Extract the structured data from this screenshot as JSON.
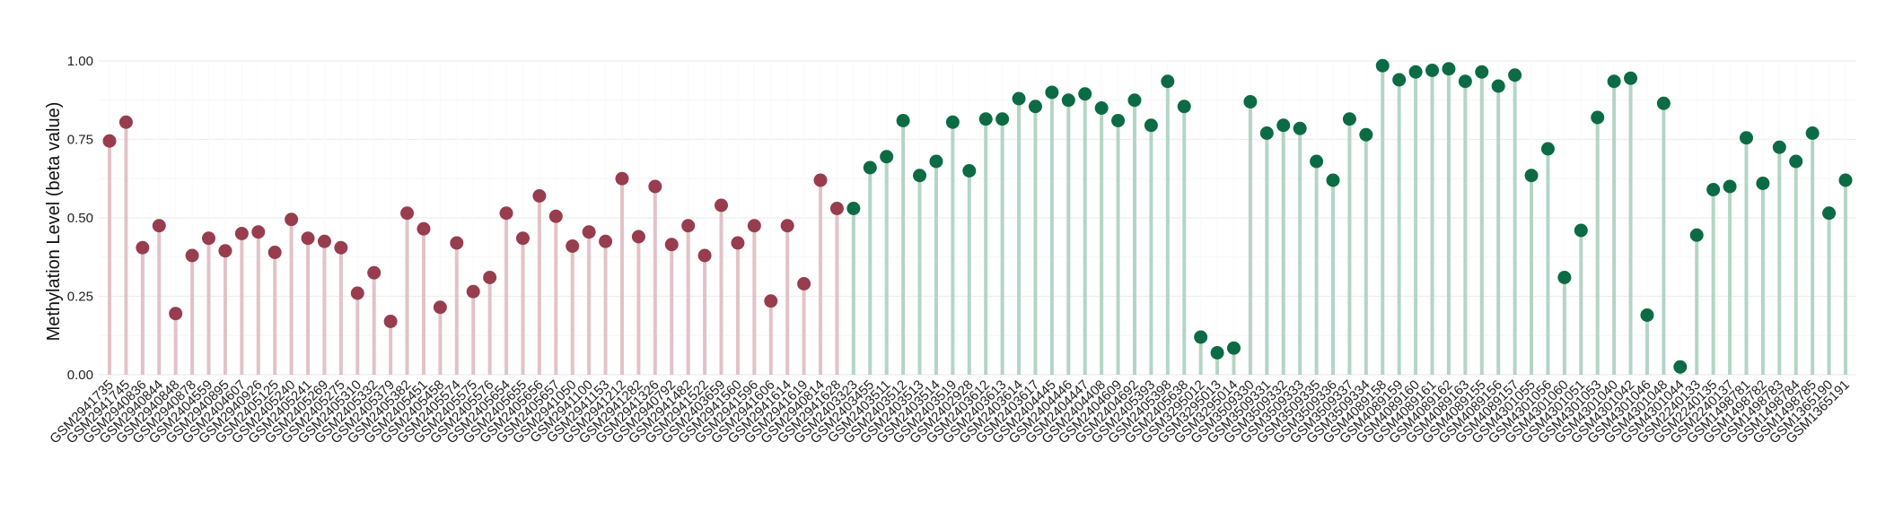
{
  "chart_data": {
    "type": "lollipop",
    "ylabel": "Methylation Level (beta value)",
    "xlabel": "",
    "ylim": [
      0,
      1.0
    ],
    "yticks": [
      "0.00",
      "0.25",
      "0.50",
      "0.75",
      "1.00"
    ],
    "grid": true,
    "colors": {
      "red_dot": "#973D4E",
      "red_stem": "#E2C2C8",
      "green_dot": "#0B6B45",
      "green_stem": "#B4D5C6",
      "grid": "#EEEEEE"
    },
    "points": [
      {
        "label": "GSM2941735",
        "value": 0.745,
        "group": "red"
      },
      {
        "label": "GSM2941745",
        "value": 0.805,
        "group": "red"
      },
      {
        "label": "GSM2940836",
        "value": 0.405,
        "group": "red"
      },
      {
        "label": "GSM2940844",
        "value": 0.475,
        "group": "red"
      },
      {
        "label": "GSM2940848",
        "value": 0.195,
        "group": "red"
      },
      {
        "label": "GSM2940878",
        "value": 0.38,
        "group": "red"
      },
      {
        "label": "GSM2404559",
        "value": 0.435,
        "group": "red"
      },
      {
        "label": "GSM2940895",
        "value": 0.395,
        "group": "red"
      },
      {
        "label": "GSM2404607",
        "value": 0.45,
        "group": "red"
      },
      {
        "label": "GSM2940926",
        "value": 0.455,
        "group": "red"
      },
      {
        "label": "GSM2405125",
        "value": 0.39,
        "group": "red"
      },
      {
        "label": "GSM2405240",
        "value": 0.495,
        "group": "red"
      },
      {
        "label": "GSM2405241",
        "value": 0.435,
        "group": "red"
      },
      {
        "label": "GSM2405269",
        "value": 0.425,
        "group": "red"
      },
      {
        "label": "GSM2405275",
        "value": 0.405,
        "group": "red"
      },
      {
        "label": "GSM2405310",
        "value": 0.26,
        "group": "red"
      },
      {
        "label": "GSM2405332",
        "value": 0.325,
        "group": "red"
      },
      {
        "label": "GSM2405379",
        "value": 0.17,
        "group": "red"
      },
      {
        "label": "GSM2405382",
        "value": 0.515,
        "group": "red"
      },
      {
        "label": "GSM2405451",
        "value": 0.465,
        "group": "red"
      },
      {
        "label": "GSM2405458",
        "value": 0.215,
        "group": "red"
      },
      {
        "label": "GSM2405574",
        "value": 0.42,
        "group": "red"
      },
      {
        "label": "GSM2405575",
        "value": 0.265,
        "group": "red"
      },
      {
        "label": "GSM2405576",
        "value": 0.31,
        "group": "red"
      },
      {
        "label": "GSM2405654",
        "value": 0.515,
        "group": "red"
      },
      {
        "label": "GSM2405655",
        "value": 0.435,
        "group": "red"
      },
      {
        "label": "GSM2405656",
        "value": 0.57,
        "group": "red"
      },
      {
        "label": "GSM2405657",
        "value": 0.505,
        "group": "red"
      },
      {
        "label": "GSM2941050",
        "value": 0.41,
        "group": "red"
      },
      {
        "label": "GSM2941100",
        "value": 0.455,
        "group": "red"
      },
      {
        "label": "GSM2941153",
        "value": 0.425,
        "group": "red"
      },
      {
        "label": "GSM2941212",
        "value": 0.625,
        "group": "red"
      },
      {
        "label": "GSM2941282",
        "value": 0.44,
        "group": "red"
      },
      {
        "label": "GSM2941326",
        "value": 0.6,
        "group": "red"
      },
      {
        "label": "GSM2940792",
        "value": 0.415,
        "group": "red"
      },
      {
        "label": "GSM2941482",
        "value": 0.475,
        "group": "red"
      },
      {
        "label": "GSM2941522",
        "value": 0.38,
        "group": "red"
      },
      {
        "label": "GSM2403659",
        "value": 0.54,
        "group": "red"
      },
      {
        "label": "GSM2941560",
        "value": 0.42,
        "group": "red"
      },
      {
        "label": "GSM2941596",
        "value": 0.475,
        "group": "red"
      },
      {
        "label": "GSM2941606",
        "value": 0.235,
        "group": "red"
      },
      {
        "label": "GSM2941614",
        "value": 0.475,
        "group": "red"
      },
      {
        "label": "GSM2941619",
        "value": 0.29,
        "group": "red"
      },
      {
        "label": "GSM2940814",
        "value": 0.62,
        "group": "red"
      },
      {
        "label": "GSM2941628",
        "value": 0.53,
        "group": "red"
      },
      {
        "label": "GSM2403323",
        "value": 0.53,
        "group": "green"
      },
      {
        "label": "GSM2403455",
        "value": 0.66,
        "group": "green"
      },
      {
        "label": "GSM2403511",
        "value": 0.695,
        "group": "green"
      },
      {
        "label": "GSM2403512",
        "value": 0.81,
        "group": "green"
      },
      {
        "label": "GSM2403513",
        "value": 0.635,
        "group": "green"
      },
      {
        "label": "GSM2403514",
        "value": 0.68,
        "group": "green"
      },
      {
        "label": "GSM2403519",
        "value": 0.805,
        "group": "green"
      },
      {
        "label": "GSM2402928",
        "value": 0.65,
        "group": "green"
      },
      {
        "label": "GSM2403612",
        "value": 0.815,
        "group": "green"
      },
      {
        "label": "GSM2403613",
        "value": 0.815,
        "group": "green"
      },
      {
        "label": "GSM2403614",
        "value": 0.88,
        "group": "green"
      },
      {
        "label": "GSM2403617",
        "value": 0.855,
        "group": "green"
      },
      {
        "label": "GSM2404445",
        "value": 0.9,
        "group": "green"
      },
      {
        "label": "GSM2404446",
        "value": 0.875,
        "group": "green"
      },
      {
        "label": "GSM2404447",
        "value": 0.895,
        "group": "green"
      },
      {
        "label": "GSM2404408",
        "value": 0.85,
        "group": "green"
      },
      {
        "label": "GSM2404609",
        "value": 0.81,
        "group": "green"
      },
      {
        "label": "GSM2404692",
        "value": 0.875,
        "group": "green"
      },
      {
        "label": "GSM2405393",
        "value": 0.795,
        "group": "green"
      },
      {
        "label": "GSM2405398",
        "value": 0.935,
        "group": "green"
      },
      {
        "label": "GSM2405638",
        "value": 0.855,
        "group": "green"
      },
      {
        "label": "GSM3295012",
        "value": 0.12,
        "group": "green"
      },
      {
        "label": "GSM3295013",
        "value": 0.07,
        "group": "green"
      },
      {
        "label": "GSM3295014",
        "value": 0.085,
        "group": "green"
      },
      {
        "label": "GSM3509330",
        "value": 0.87,
        "group": "green"
      },
      {
        "label": "GSM3509331",
        "value": 0.77,
        "group": "green"
      },
      {
        "label": "GSM3509332",
        "value": 0.795,
        "group": "green"
      },
      {
        "label": "GSM3509333",
        "value": 0.785,
        "group": "green"
      },
      {
        "label": "GSM3509335",
        "value": 0.68,
        "group": "green"
      },
      {
        "label": "GSM3509336",
        "value": 0.62,
        "group": "green"
      },
      {
        "label": "GSM3509337",
        "value": 0.815,
        "group": "green"
      },
      {
        "label": "GSM3509334",
        "value": 0.765,
        "group": "green"
      },
      {
        "label": "GSM4089158",
        "value": 0.985,
        "group": "green"
      },
      {
        "label": "GSM4089159",
        "value": 0.94,
        "group": "green"
      },
      {
        "label": "GSM4089160",
        "value": 0.965,
        "group": "green"
      },
      {
        "label": "GSM4089161",
        "value": 0.97,
        "group": "green"
      },
      {
        "label": "GSM4089162",
        "value": 0.975,
        "group": "green"
      },
      {
        "label": "GSM4089163",
        "value": 0.935,
        "group": "green"
      },
      {
        "label": "GSM4089155",
        "value": 0.965,
        "group": "green"
      },
      {
        "label": "GSM4089156",
        "value": 0.92,
        "group": "green"
      },
      {
        "label": "GSM4089157",
        "value": 0.955,
        "group": "green"
      },
      {
        "label": "GSM4301055",
        "value": 0.635,
        "group": "green"
      },
      {
        "label": "GSM4301056",
        "value": 0.72,
        "group": "green"
      },
      {
        "label": "GSM4301060",
        "value": 0.31,
        "group": "green"
      },
      {
        "label": "GSM4301051",
        "value": 0.46,
        "group": "green"
      },
      {
        "label": "GSM4301053",
        "value": 0.82,
        "group": "green"
      },
      {
        "label": "GSM4301040",
        "value": 0.935,
        "group": "green"
      },
      {
        "label": "GSM4301042",
        "value": 0.945,
        "group": "green"
      },
      {
        "label": "GSM4301046",
        "value": 0.19,
        "group": "green"
      },
      {
        "label": "GSM4301048",
        "value": 0.865,
        "group": "green"
      },
      {
        "label": "GSM4301044",
        "value": 0.025,
        "group": "green"
      },
      {
        "label": "GSM2240133",
        "value": 0.445,
        "group": "green"
      },
      {
        "label": "GSM2240135",
        "value": 0.59,
        "group": "green"
      },
      {
        "label": "GSM2240137",
        "value": 0.6,
        "group": "green"
      },
      {
        "label": "GSM1498781",
        "value": 0.755,
        "group": "green"
      },
      {
        "label": "GSM1498782",
        "value": 0.61,
        "group": "green"
      },
      {
        "label": "GSM1498783",
        "value": 0.725,
        "group": "green"
      },
      {
        "label": "GSM1498784",
        "value": 0.68,
        "group": "green"
      },
      {
        "label": "GSM1498785",
        "value": 0.77,
        "group": "green"
      },
      {
        "label": "GSM1365190",
        "value": 0.515,
        "group": "green"
      },
      {
        "label": "GSM1365191",
        "value": 0.62,
        "group": "green"
      }
    ]
  }
}
